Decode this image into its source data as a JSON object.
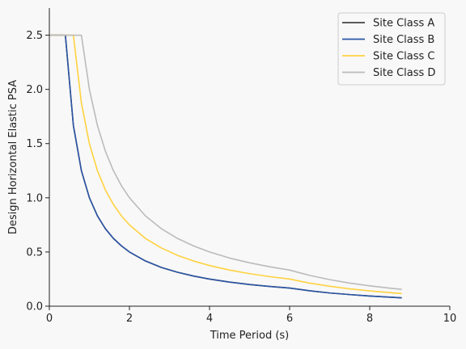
{
  "chart_data": {
    "type": "line",
    "title": "",
    "xlabel": "Time Period (s)",
    "ylabel": "Design Horizontal Elastic PSA",
    "xlim": [
      0,
      10
    ],
    "ylim": [
      0,
      2.75
    ],
    "xticks": [
      0,
      2,
      4,
      6,
      8,
      10
    ],
    "yticks": [
      0.0,
      0.5,
      1.0,
      1.5,
      2.0,
      2.5
    ],
    "xtick_labels": [
      "0",
      "2",
      "4",
      "6",
      "8",
      "10"
    ],
    "ytick_labels": [
      "0.0",
      "0.5",
      "1.0",
      "1.5",
      "2.0",
      "2.5"
    ],
    "grid": false,
    "legend_position": "top-right",
    "series": [
      {
        "name": "Site Class A",
        "color": "#444444",
        "x": [
          0,
          0.4,
          0.6,
          0.8,
          1.0,
          1.2,
          1.4,
          1.6,
          1.8,
          2.0,
          2.4,
          2.8,
          3.2,
          3.6,
          4.0,
          4.5,
          5.0,
          5.5,
          6.0,
          6.5,
          7.0,
          7.5,
          8.0,
          8.5,
          8.8
        ],
        "y": [
          2.5,
          2.5,
          1.667,
          1.25,
          1.0,
          0.833,
          0.714,
          0.625,
          0.556,
          0.5,
          0.417,
          0.357,
          0.313,
          0.278,
          0.25,
          0.222,
          0.2,
          0.182,
          0.167,
          0.142,
          0.122,
          0.107,
          0.094,
          0.083,
          0.077
        ]
      },
      {
        "name": "Site Class B",
        "color": "#2b55a5",
        "x": [
          0,
          0.4,
          0.6,
          0.8,
          1.0,
          1.2,
          1.4,
          1.6,
          1.8,
          2.0,
          2.4,
          2.8,
          3.2,
          3.6,
          4.0,
          4.5,
          5.0,
          5.5,
          6.0,
          6.5,
          7.0,
          7.5,
          8.0,
          8.5,
          8.8
        ],
        "y": [
          2.5,
          2.5,
          1.667,
          1.25,
          1.0,
          0.833,
          0.714,
          0.625,
          0.556,
          0.5,
          0.417,
          0.357,
          0.313,
          0.278,
          0.25,
          0.222,
          0.2,
          0.182,
          0.167,
          0.142,
          0.122,
          0.107,
          0.094,
          0.083,
          0.077
        ]
      },
      {
        "name": "Site Class C",
        "color": "#ffd23f",
        "x": [
          0,
          0.6,
          0.8,
          1.0,
          1.2,
          1.4,
          1.6,
          1.8,
          2.0,
          2.4,
          2.8,
          3.2,
          3.6,
          4.0,
          4.5,
          5.0,
          5.5,
          6.0,
          6.5,
          7.0,
          7.5,
          8.0,
          8.5,
          8.8
        ],
        "y": [
          2.5,
          2.5,
          1.875,
          1.5,
          1.25,
          1.071,
          0.938,
          0.833,
          0.75,
          0.625,
          0.536,
          0.469,
          0.417,
          0.375,
          0.333,
          0.3,
          0.273,
          0.25,
          0.213,
          0.184,
          0.16,
          0.141,
          0.125,
          0.116
        ]
      },
      {
        "name": "Site Class D",
        "color": "#bbbbbb",
        "x": [
          0,
          0.8,
          1.0,
          1.2,
          1.4,
          1.6,
          1.8,
          2.0,
          2.4,
          2.8,
          3.2,
          3.6,
          4.0,
          4.5,
          5.0,
          5.5,
          6.0,
          6.5,
          7.0,
          7.5,
          8.0,
          8.5,
          8.8
        ],
        "y": [
          2.5,
          2.5,
          2.0,
          1.667,
          1.429,
          1.25,
          1.111,
          1.0,
          0.833,
          0.714,
          0.625,
          0.556,
          0.5,
          0.444,
          0.4,
          0.364,
          0.333,
          0.284,
          0.245,
          0.213,
          0.188,
          0.166,
          0.155
        ]
      }
    ]
  }
}
